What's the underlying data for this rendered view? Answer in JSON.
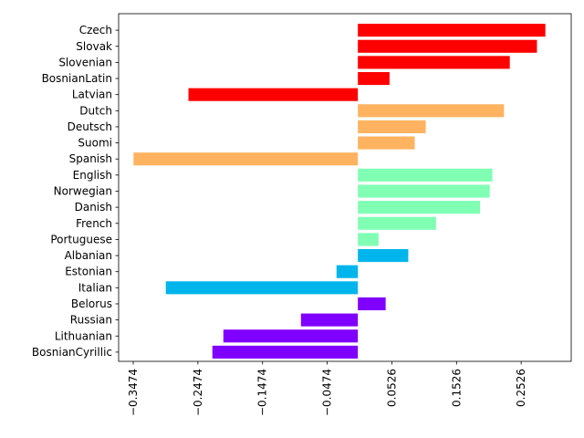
{
  "chart_data": {
    "type": "bar",
    "orientation": "horizontal",
    "grid": false,
    "xlim": [
      -0.37,
      0.33
    ],
    "xticks": [
      -0.3474,
      -0.2474,
      -0.1474,
      -0.0474,
      0.0526,
      0.1526,
      0.2526
    ],
    "xtick_labels": [
      "−0.3474",
      "−0.2474",
      "−0.1474",
      "−0.0474",
      "0.0526",
      "0.1526",
      "0.2526"
    ],
    "categories": [
      "Czech",
      "Slovak",
      "Slovenian",
      "BosnianLatin",
      "Latvian",
      "Dutch",
      "Deutsch",
      "Suomi",
      "Spanish",
      "English",
      "Norwegian",
      "Danish",
      "French",
      "Portuguese",
      "Albanian",
      "Estonian",
      "Italian",
      "Belorus",
      "Russian",
      "Lithuanian",
      "BosnianCyrillic"
    ],
    "values": [
      0.29,
      0.277,
      0.235,
      0.049,
      -0.262,
      0.226,
      0.105,
      0.088,
      -0.347,
      0.208,
      0.204,
      0.189,
      0.121,
      0.032,
      0.078,
      -0.033,
      -0.297,
      0.043,
      -0.088,
      -0.208,
      -0.225
    ],
    "colors": [
      "#ff0000",
      "#ff0000",
      "#ff0000",
      "#ff0000",
      "#ff0000",
      "#ffb360",
      "#ffb360",
      "#ffb360",
      "#ffb360",
      "#80ffb4",
      "#80ffb4",
      "#80ffb4",
      "#80ffb4",
      "#80ffb4",
      "#00b5eb",
      "#00b5eb",
      "#00b5eb",
      "#8000ff",
      "#8000ff",
      "#8000ff",
      "#8000ff"
    ]
  }
}
